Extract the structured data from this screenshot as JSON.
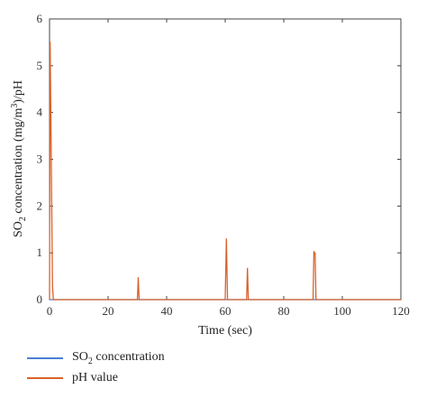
{
  "chart_data": {
    "type": "line",
    "xlabel": "Time (sec)",
    "ylabel_parts": [
      "SO",
      "2",
      " concentration (mg/m",
      "3",
      ")/pH"
    ],
    "xlim": [
      0,
      120
    ],
    "ylim": [
      0,
      6
    ],
    "xticks": [
      0,
      20,
      40,
      60,
      80,
      100,
      120
    ],
    "yticks": [
      0,
      1,
      2,
      3,
      4,
      5,
      6
    ],
    "grid": false,
    "legend_position": "below",
    "series": [
      {
        "name": "SO2 concentration",
        "name_parts": [
          "SO",
          "2",
          " concentration"
        ],
        "color": "#4a7fd4",
        "x": [
          0,
          120
        ],
        "y": [
          0,
          0
        ]
      },
      {
        "name": "pH value",
        "name_parts": [
          "pH value"
        ],
        "color": "#d9622b",
        "x": [
          0,
          0.2,
          0.6,
          1.0,
          1.3,
          30,
          30.3,
          30.6,
          60,
          60.4,
          60.8,
          67.3,
          67.6,
          67.9,
          90,
          90.3,
          90.5,
          90.7,
          91.0,
          120
        ],
        "y": [
          0,
          5.5,
          3.0,
          0.3,
          0,
          0,
          0.47,
          0,
          0,
          1.3,
          0,
          0,
          0.67,
          0,
          0,
          1.03,
          0.98,
          1.0,
          0,
          0
        ]
      }
    ]
  }
}
